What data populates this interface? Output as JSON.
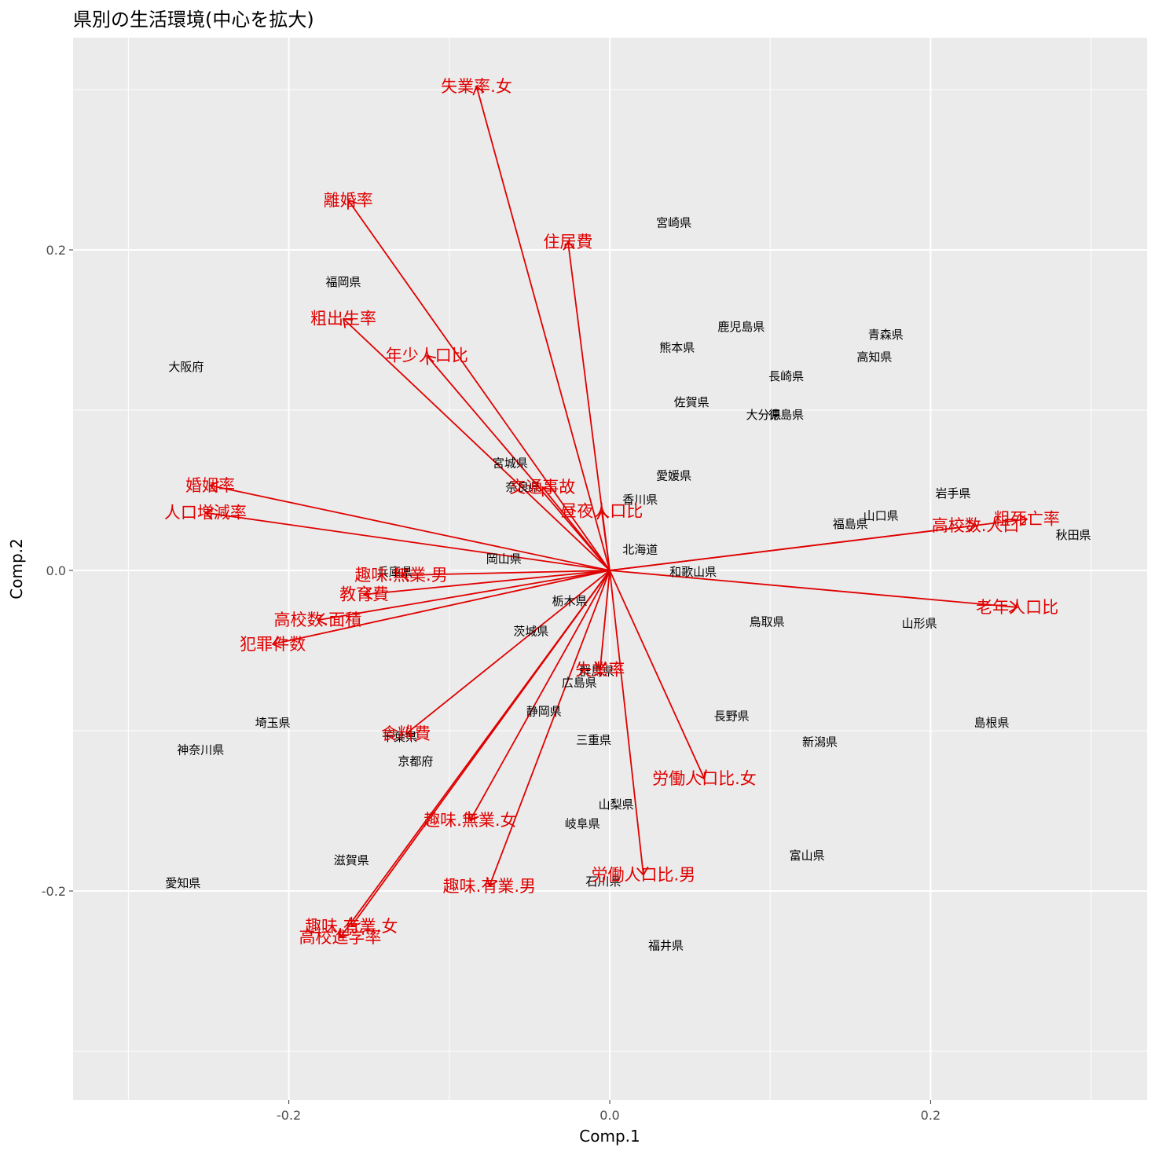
{
  "chart_data": {
    "type": "scatter",
    "title": "県別の生活環境(中心を拡大)",
    "xlabel": "Comp.1",
    "ylabel": "Comp.2",
    "xlim": [
      -0.33,
      0.33
    ],
    "ylim": [
      -0.33,
      0.33
    ],
    "x_ticks": [
      -0.2,
      0.0,
      0.2
    ],
    "y_ticks": [
      -0.2,
      0.0,
      0.2
    ],
    "x_tick_labels": [
      "-0.2",
      "0.0",
      "0.2"
    ],
    "y_tick_labels": [
      "-0.2",
      "0.0",
      "0.2"
    ],
    "grid": true,
    "arrow_color": "#e00000",
    "panel_color": "#ebebeb",
    "points": [
      {
        "label": "宮崎県",
        "x": 0.04,
        "y": 0.217
      },
      {
        "label": "福岡県",
        "x": -0.166,
        "y": 0.18
      },
      {
        "label": "鹿児島県",
        "x": 0.082,
        "y": 0.152
      },
      {
        "label": "青森県",
        "x": 0.172,
        "y": 0.147
      },
      {
        "label": "熊本県",
        "x": 0.042,
        "y": 0.139
      },
      {
        "label": "高知県",
        "x": 0.165,
        "y": 0.133
      },
      {
        "label": "大阪府",
        "x": -0.264,
        "y": 0.127
      },
      {
        "label": "長崎県",
        "x": 0.11,
        "y": 0.121
      },
      {
        "label": "佐賀県",
        "x": 0.051,
        "y": 0.105
      },
      {
        "label": "大分県",
        "x": 0.096,
        "y": 0.097
      },
      {
        "label": "徳島県",
        "x": 0.11,
        "y": 0.097
      },
      {
        "label": "宮城県",
        "x": -0.062,
        "y": 0.067
      },
      {
        "label": "愛媛県",
        "x": 0.04,
        "y": 0.059
      },
      {
        "label": "奈良県",
        "x": -0.054,
        "y": 0.052
      },
      {
        "label": "岩手県",
        "x": 0.214,
        "y": 0.048
      },
      {
        "label": "香川県",
        "x": 0.019,
        "y": 0.044
      },
      {
        "label": "山口県",
        "x": 0.169,
        "y": 0.034
      },
      {
        "label": "福島県",
        "x": 0.15,
        "y": 0.029
      },
      {
        "label": "秋田県",
        "x": 0.289,
        "y": 0.022
      },
      {
        "label": "北海道",
        "x": 0.019,
        "y": 0.013
      },
      {
        "label": "岡山県",
        "x": -0.066,
        "y": 0.007
      },
      {
        "label": "兵庫県",
        "x": -0.134,
        "y": -0.001
      },
      {
        "label": "和歌山県",
        "x": 0.052,
        "y": -0.001
      },
      {
        "label": "栃木県",
        "x": -0.025,
        "y": -0.019
      },
      {
        "label": "鳥取県",
        "x": 0.098,
        "y": -0.032
      },
      {
        "label": "山形県",
        "x": 0.193,
        "y": -0.033
      },
      {
        "label": "茨城県",
        "x": -0.049,
        "y": -0.038
      },
      {
        "label": "群馬県",
        "x": -0.008,
        "y": -0.063
      },
      {
        "label": "広島県",
        "x": -0.019,
        "y": -0.07
      },
      {
        "label": "埼玉県",
        "x": -0.21,
        "y": -0.095
      },
      {
        "label": "静岡県",
        "x": -0.041,
        "y": -0.088
      },
      {
        "label": "長野県",
        "x": 0.076,
        "y": -0.091
      },
      {
        "label": "島根県",
        "x": 0.238,
        "y": -0.095
      },
      {
        "label": "神奈川県",
        "x": -0.255,
        "y": -0.112
      },
      {
        "label": "千葉県",
        "x": -0.131,
        "y": -0.104
      },
      {
        "label": "三重県",
        "x": -0.01,
        "y": -0.106
      },
      {
        "label": "新潟県",
        "x": 0.131,
        "y": -0.107
      },
      {
        "label": "京都府",
        "x": -0.121,
        "y": -0.119
      },
      {
        "label": "山梨県",
        "x": 0.004,
        "y": -0.146
      },
      {
        "label": "岐阜県",
        "x": -0.017,
        "y": -0.158
      },
      {
        "label": "富山県",
        "x": 0.123,
        "y": -0.178
      },
      {
        "label": "滋賀県",
        "x": -0.161,
        "y": -0.181
      },
      {
        "label": "石川県",
        "x": -0.004,
        "y": -0.194
      },
      {
        "label": "愛知県",
        "x": -0.266,
        "y": -0.195
      },
      {
        "label": "福井県",
        "x": 0.035,
        "y": -0.234
      }
    ],
    "arrows": [
      {
        "label": "失業率.女",
        "x": -0.083,
        "y": 0.302
      },
      {
        "label": "離婚率",
        "x": -0.163,
        "y": 0.231
      },
      {
        "label": "住居費",
        "x": -0.026,
        "y": 0.205
      },
      {
        "label": "粗出生率",
        "x": -0.166,
        "y": 0.157
      },
      {
        "label": "年少人口比",
        "x": -0.114,
        "y": 0.134
      },
      {
        "label": "婚姻率",
        "x": -0.249,
        "y": 0.053
      },
      {
        "label": "人口増減率",
        "x": -0.252,
        "y": 0.036
      },
      {
        "label": "交通事故",
        "x": -0.042,
        "y": 0.052
      },
      {
        "label": "昼夜人口比",
        "x": -0.005,
        "y": 0.037
      },
      {
        "label": "高校数.人口",
        "x": 0.228,
        "y": 0.028
      },
      {
        "label": "粗死亡率",
        "x": 0.26,
        "y": 0.032
      },
      {
        "label": "老年人口比",
        "x": 0.254,
        "y": -0.023
      },
      {
        "label": "趣味.無業.男",
        "x": -0.13,
        "y": -0.003
      },
      {
        "label": "教育費",
        "x": -0.153,
        "y": -0.015
      },
      {
        "label": "高校数.面積",
        "x": -0.182,
        "y": -0.031
      },
      {
        "label": "犯罪件数",
        "x": -0.21,
        "y": -0.046
      },
      {
        "label": "失業率",
        "x": -0.006,
        "y": -0.062
      },
      {
        "label": "食料費",
        "x": -0.127,
        "y": -0.102
      },
      {
        "label": "労働人口比.女",
        "x": 0.059,
        "y": -0.13
      },
      {
        "label": "趣味.無業.女",
        "x": -0.087,
        "y": -0.156
      },
      {
        "label": "労働人口比.男",
        "x": 0.021,
        "y": -0.19
      },
      {
        "label": "趣味.有業.男",
        "x": -0.075,
        "y": -0.197
      },
      {
        "label": "趣味.有業.女",
        "x": -0.161,
        "y": -0.222
      },
      {
        "label": "高校進学率",
        "x": -0.168,
        "y": -0.229
      }
    ]
  }
}
